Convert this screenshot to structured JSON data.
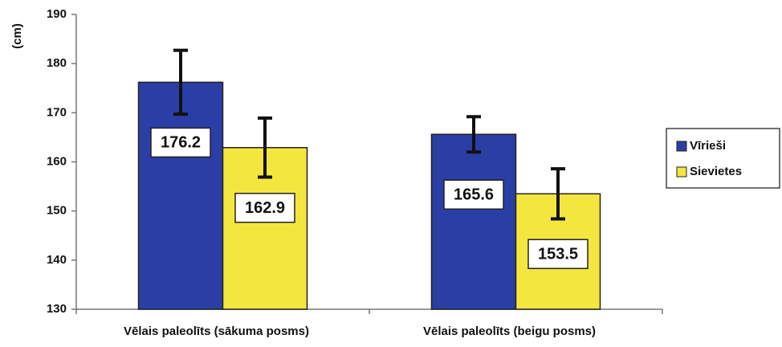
{
  "chart_data": {
    "type": "bar",
    "y_label": "(cm)",
    "categories": [
      "Vēlais paleolīts (sākuma posms)",
      "Vēlais paleolīts (beigu posms)"
    ],
    "series": [
      {
        "name": "Vīrieši",
        "color": "#2b3ea6",
        "values": [
          176.2,
          165.6
        ],
        "errors": [
          6.5,
          3.6
        ]
      },
      {
        "name": "Sievietes",
        "color": "#f3e63f",
        "values": [
          162.9,
          153.5
        ],
        "errors": [
          6.0,
          5.1
        ]
      }
    ],
    "ylim": [
      130,
      190
    ],
    "yticks": [
      130,
      140,
      150,
      160,
      170,
      180,
      190
    ],
    "legend": "right",
    "grid": false
  }
}
